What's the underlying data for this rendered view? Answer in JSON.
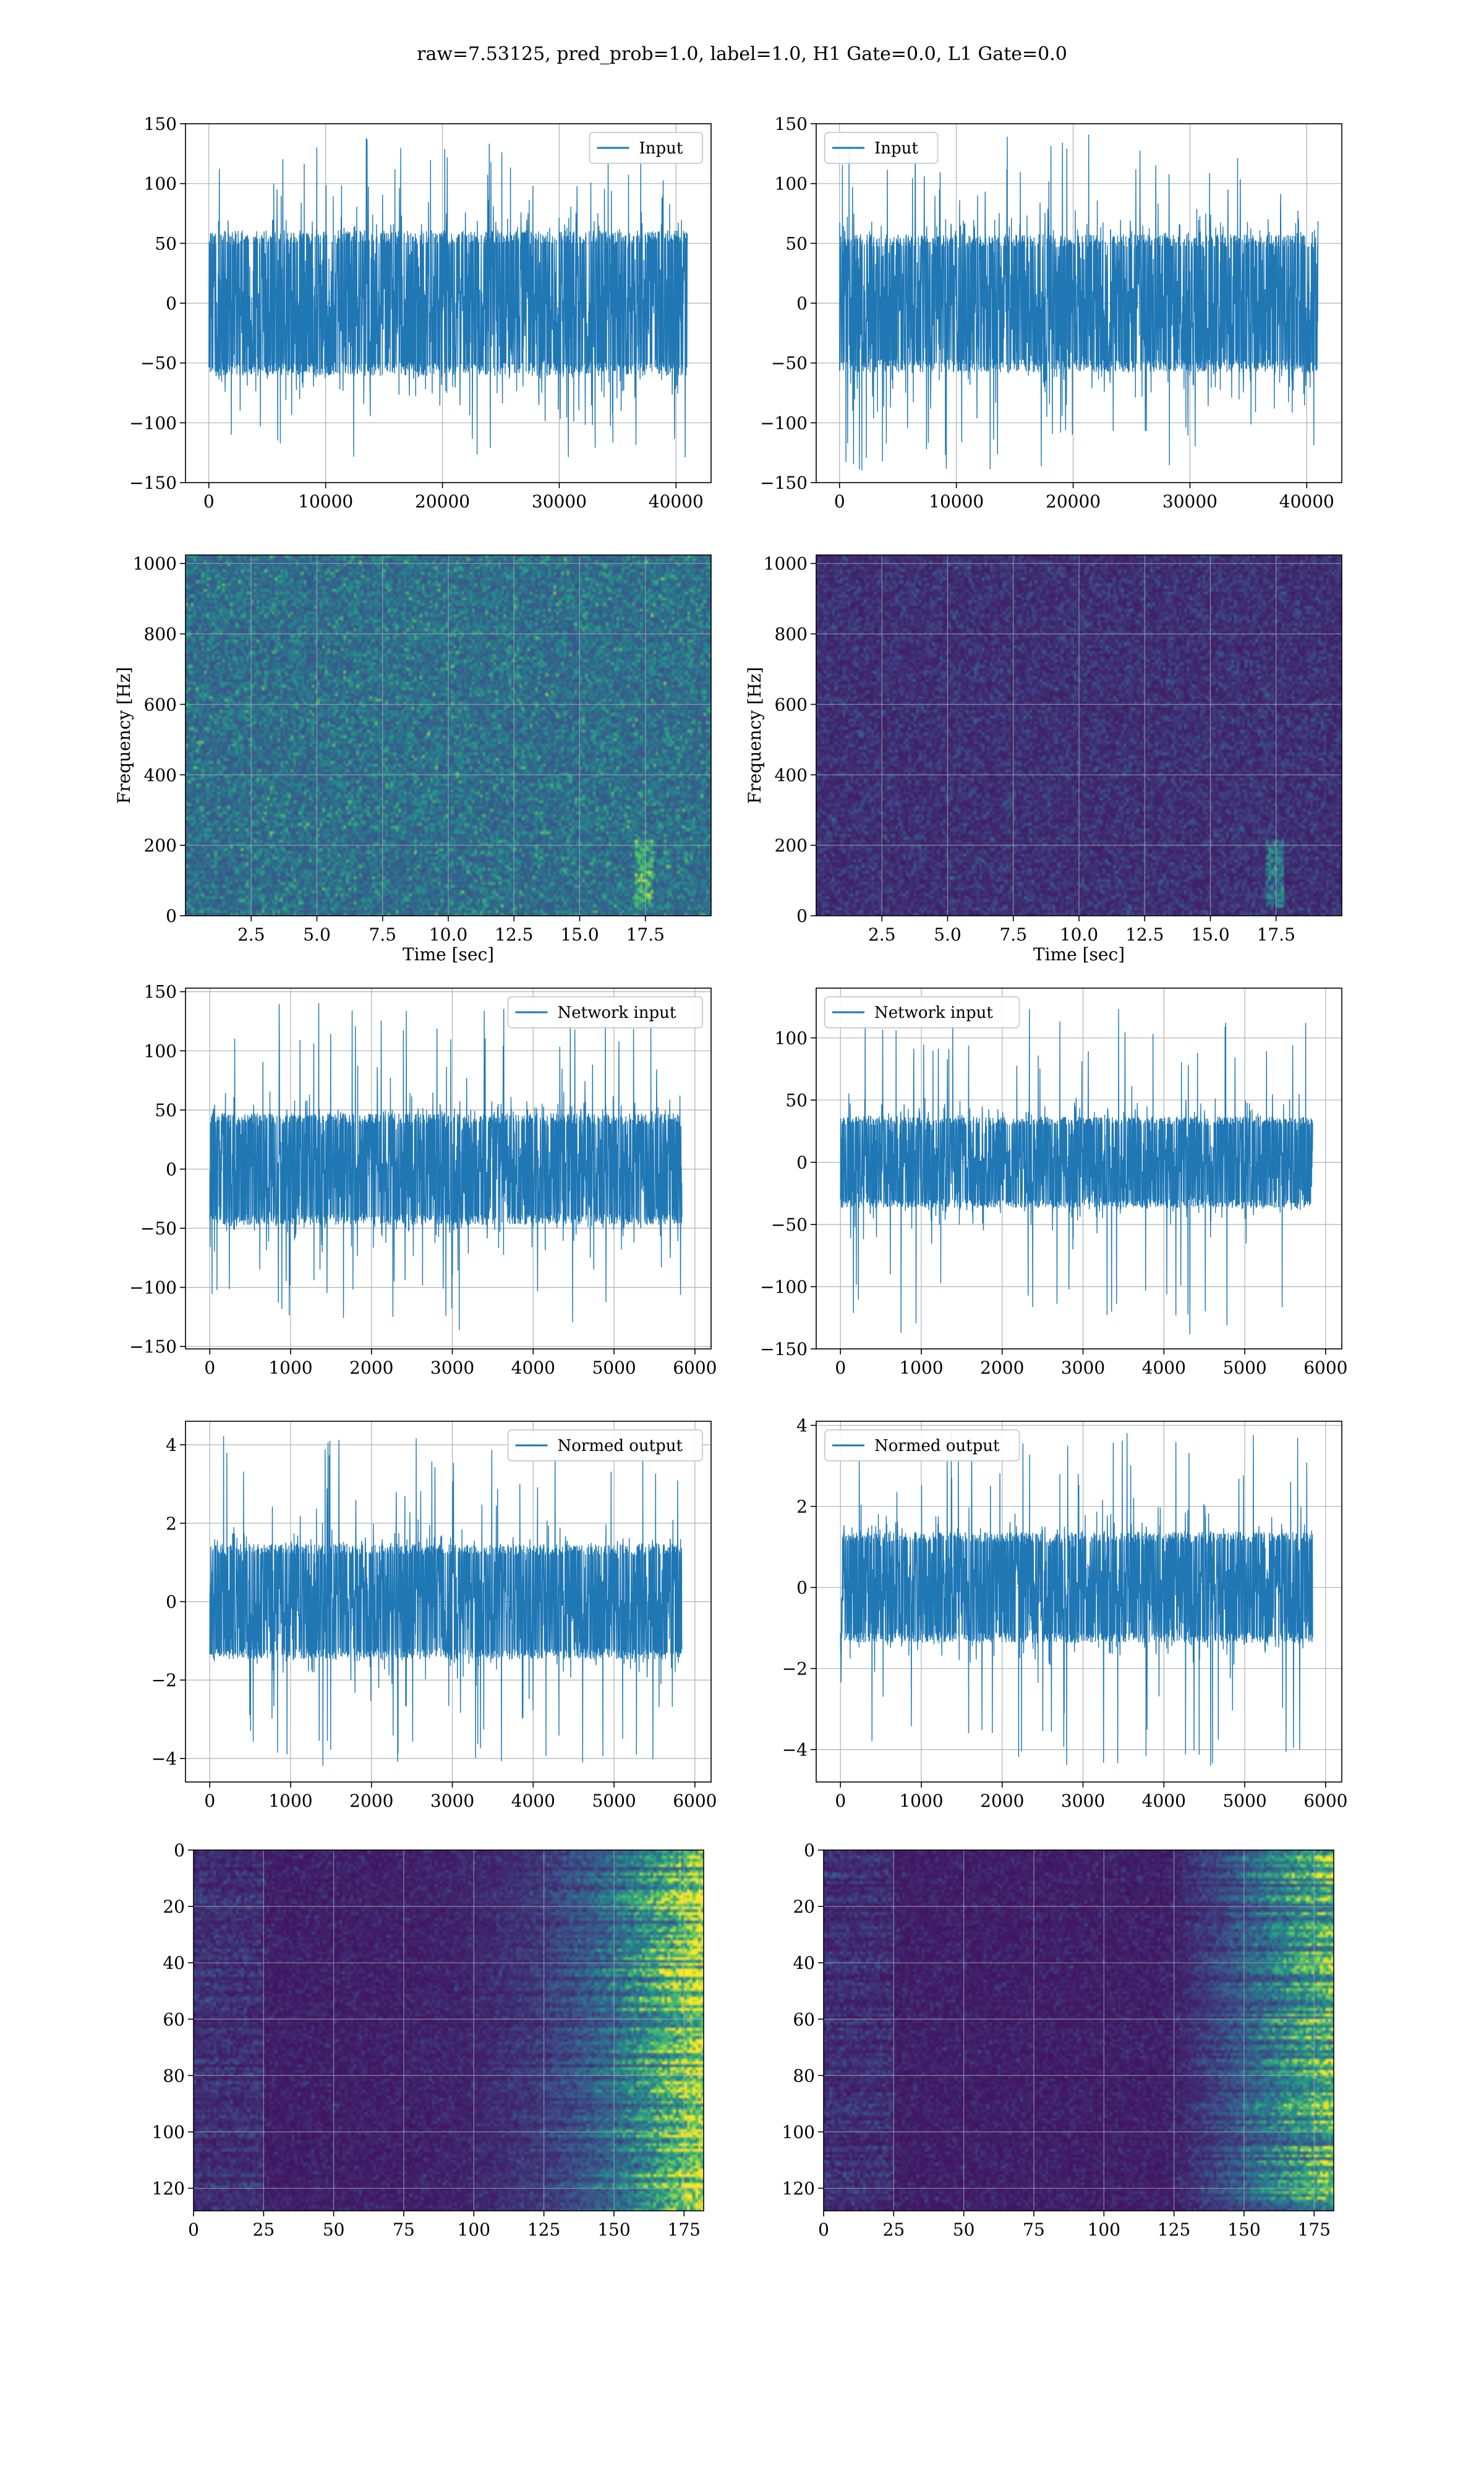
{
  "title": "raw=7.53125, pred_prob=1.0, label=1.0, H1 Gate=0.0, L1 Gate=0.0",
  "colors": {
    "line": "#1f77b4",
    "viridis_low": "#440154",
    "viridis_mid": "#21918c",
    "viridis_high": "#fde725",
    "grid": "#b0b0b0"
  },
  "chart_data": [
    {
      "id": "h1-input",
      "type": "line",
      "legend": [
        "Input"
      ],
      "legend_loc": "upper right",
      "xlim": [
        -2000,
        43000
      ],
      "ylim": [
        -150,
        150
      ],
      "xticks": [
        0,
        10000,
        20000,
        30000,
        40000
      ],
      "yticks": [
        -150,
        -100,
        -50,
        0,
        50,
        100,
        150
      ],
      "xtick_labels": [
        "0",
        "10000",
        "20000",
        "30000",
        "40000"
      ],
      "ytick_labels": [
        "−150",
        "−100",
        "−50",
        "0",
        "50",
        "100",
        "150"
      ],
      "series": [
        {
          "x_range": [
            0,
            40960
          ],
          "core_amplitude": 58,
          "peak_range": [
            -132,
            138
          ]
        }
      ]
    },
    {
      "id": "l1-input",
      "type": "line",
      "legend": [
        "Input"
      ],
      "legend_loc": "upper left",
      "xlim": [
        -2000,
        43000
      ],
      "ylim": [
        -150,
        150
      ],
      "xticks": [
        0,
        10000,
        20000,
        30000,
        40000
      ],
      "yticks": [
        -150,
        -100,
        -50,
        0,
        50,
        100,
        150
      ],
      "xtick_labels": [
        "0",
        "10000",
        "20000",
        "30000",
        "40000"
      ],
      "ytick_labels": [
        "−150",
        "−100",
        "−50",
        "0",
        "50",
        "100",
        "150"
      ],
      "series": [
        {
          "x_range": [
            0,
            40960
          ],
          "core_amplitude": 55,
          "peak_range": [
            -140,
            146
          ]
        }
      ]
    },
    {
      "id": "h1-spectrogram",
      "type": "heatmap",
      "xlabel": "Time [sec]",
      "ylabel": "Frequency [Hz]",
      "xlim": [
        0,
        20
      ],
      "ylim": [
        0,
        1024
      ],
      "xticks": [
        2.5,
        5.0,
        7.5,
        10.0,
        12.5,
        15.0,
        17.5
      ],
      "yticks": [
        0,
        200,
        400,
        600,
        800,
        1000
      ],
      "xtick_labels": [
        "2.5",
        "5.0",
        "7.5",
        "10.0",
        "12.5",
        "15.0",
        "17.5"
      ],
      "ytick_labels": [
        "0",
        "200",
        "400",
        "600",
        "800",
        "1000"
      ]
    },
    {
      "id": "l1-spectrogram",
      "type": "heatmap",
      "xlabel": "Time [sec]",
      "ylabel": "Frequency [Hz]",
      "xlim": [
        0,
        20
      ],
      "ylim": [
        0,
        1024
      ],
      "xticks": [
        2.5,
        5.0,
        7.5,
        10.0,
        12.5,
        15.0,
        17.5
      ],
      "yticks": [
        0,
        200,
        400,
        600,
        800,
        1000
      ],
      "xtick_labels": [
        "2.5",
        "5.0",
        "7.5",
        "10.0",
        "12.5",
        "15.0",
        "17.5"
      ],
      "ytick_labels": [
        "0",
        "200",
        "400",
        "600",
        "800",
        "1000"
      ]
    },
    {
      "id": "h1-network-input",
      "type": "line",
      "legend": [
        "Network input"
      ],
      "legend_loc": "upper right",
      "xlim": [
        -300,
        6200
      ],
      "ylim": [
        -152,
        153
      ],
      "xticks": [
        0,
        1000,
        2000,
        3000,
        4000,
        5000,
        6000
      ],
      "yticks": [
        -150,
        -100,
        -50,
        0,
        50,
        100,
        150
      ],
      "xtick_labels": [
        "0",
        "1000",
        "2000",
        "3000",
        "4000",
        "5000",
        "6000"
      ],
      "ytick_labels": [
        "−150",
        "−100",
        "−50",
        "0",
        "50",
        "100",
        "150"
      ],
      "series": [
        {
          "x_range": [
            0,
            5840
          ],
          "core_amplitude": 45,
          "peak_range": [
            -137,
            141
          ]
        }
      ]
    },
    {
      "id": "l1-network-input",
      "type": "line",
      "legend": [
        "Network input"
      ],
      "legend_loc": "upper left",
      "xlim": [
        -300,
        6200
      ],
      "ylim": [
        -150,
        140
      ],
      "xticks": [
        0,
        1000,
        2000,
        3000,
        4000,
        5000,
        6000
      ],
      "yticks": [
        -150,
        -100,
        -50,
        0,
        50,
        100
      ],
      "xtick_labels": [
        "0",
        "1000",
        "2000",
        "3000",
        "4000",
        "5000",
        "6000"
      ],
      "ytick_labels": [
        "−150",
        "−100",
        "−50",
        "0",
        "50",
        "100"
      ],
      "series": [
        {
          "x_range": [
            0,
            5840
          ],
          "core_amplitude": 35,
          "peak_range": [
            -141,
            124
          ]
        }
      ]
    },
    {
      "id": "h1-normed-output",
      "type": "line",
      "legend": [
        "Normed output"
      ],
      "legend_loc": "upper right",
      "xlim": [
        -300,
        6200
      ],
      "ylim": [
        -4.6,
        4.6
      ],
      "xticks": [
        0,
        1000,
        2000,
        3000,
        4000,
        5000,
        6000
      ],
      "yticks": [
        -4,
        -2,
        0,
        2,
        4
      ],
      "xtick_labels": [
        "0",
        "1000",
        "2000",
        "3000",
        "4000",
        "5000",
        "6000"
      ],
      "ytick_labels": [
        "−4",
        "−2",
        "0",
        "2",
        "4"
      ],
      "series": [
        {
          "x_range": [
            0,
            5840
          ],
          "core_amplitude": 1.4,
          "peak_range": [
            -4.2,
            4.3
          ]
        }
      ]
    },
    {
      "id": "l1-normed-output",
      "type": "line",
      "legend": [
        "Normed output"
      ],
      "legend_loc": "upper left",
      "xlim": [
        -300,
        6200
      ],
      "ylim": [
        -4.8,
        4.1
      ],
      "xticks": [
        0,
        1000,
        2000,
        3000,
        4000,
        5000,
        6000
      ],
      "yticks": [
        -4,
        -2,
        0,
        2,
        4
      ],
      "xtick_labels": [
        "0",
        "1000",
        "2000",
        "3000",
        "4000",
        "5000",
        "6000"
      ],
      "ytick_labels": [
        "−4",
        "−2",
        "0",
        "2",
        "4"
      ],
      "series": [
        {
          "x_range": [
            0,
            5840
          ],
          "core_amplitude": 1.3,
          "peak_range": [
            -4.4,
            3.9
          ]
        }
      ]
    },
    {
      "id": "h1-feature-map",
      "type": "heatmap",
      "xlim": [
        0,
        182
      ],
      "ylim": [
        128,
        0
      ],
      "xticks": [
        0,
        25,
        50,
        75,
        100,
        125,
        150,
        175
      ],
      "yticks": [
        0,
        20,
        40,
        60,
        80,
        100,
        120
      ],
      "xtick_labels": [
        "0",
        "25",
        "50",
        "75",
        "100",
        "125",
        "150",
        "175"
      ],
      "ytick_labels": [
        "0",
        "20",
        "40",
        "60",
        "80",
        "100",
        "120"
      ]
    },
    {
      "id": "l1-feature-map",
      "type": "heatmap",
      "xlim": [
        0,
        182
      ],
      "ylim": [
        128,
        0
      ],
      "xticks": [
        0,
        25,
        50,
        75,
        100,
        125,
        150,
        175
      ],
      "yticks": [
        0,
        20,
        40,
        60,
        80,
        100,
        120
      ],
      "xtick_labels": [
        "0",
        "25",
        "50",
        "75",
        "100",
        "125",
        "150",
        "175"
      ],
      "ytick_labels": [
        "0",
        "20",
        "40",
        "60",
        "80",
        "100",
        "120"
      ]
    }
  ]
}
